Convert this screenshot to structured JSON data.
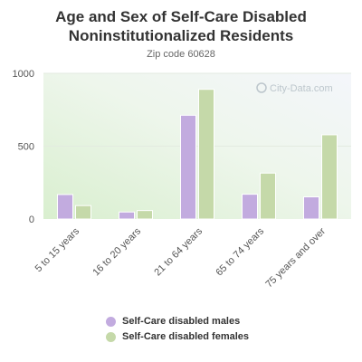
{
  "chart_data": {
    "type": "bar",
    "title": "Age and Sex of Self-Care Disabled Noninstitutionalized Residents",
    "subtitle": "Zip code 60628",
    "categories": [
      "5 to 15 years",
      "16 to 20 years",
      "21 to 64 years",
      "65 to 74 years",
      "75 years and over"
    ],
    "series": [
      {
        "name": "Self-Care disabled males",
        "values": [
          168,
          48,
          712,
          170,
          152
        ],
        "color": "#c2abdf"
      },
      {
        "name": "Self-Care disabled females",
        "values": [
          92,
          58,
          890,
          315,
          578
        ],
        "color": "#c5d9a9"
      }
    ],
    "yticks": [
      0,
      500,
      1000
    ],
    "ylim": [
      0,
      1000
    ],
    "grid": true,
    "legend_position": "bottom",
    "watermark": "City-Data.com"
  }
}
